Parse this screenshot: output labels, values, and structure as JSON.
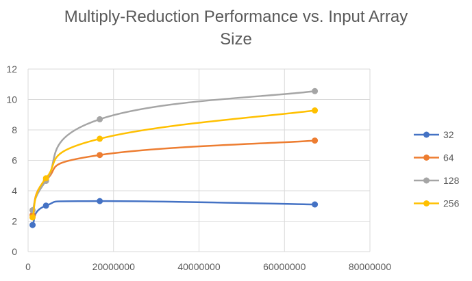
{
  "chart_data": {
    "type": "line",
    "title_lines": [
      "Multiply-Reduction Performance vs. Input Array",
      "Size"
    ],
    "xlabel": "",
    "ylabel": "",
    "xlim": [
      0,
      80000000
    ],
    "ylim": [
      0,
      12
    ],
    "x_ticks": [
      0,
      20000000,
      40000000,
      60000000,
      80000000
    ],
    "y_ticks": [
      0,
      2,
      4,
      6,
      8,
      10,
      12
    ],
    "grid": true,
    "smooth": true,
    "legend_position": "right",
    "x": [
      1048576,
      4194304,
      16777216,
      67108864
    ],
    "series": [
      {
        "name": "32",
        "color": "#4472C4",
        "values": [
          1.75,
          3.02,
          3.32,
          3.1
        ]
      },
      {
        "name": "64",
        "color": "#ED7D31",
        "values": [
          2.4,
          4.7,
          6.35,
          7.3
        ]
      },
      {
        "name": "128",
        "color": "#A5A5A5",
        "values": [
          2.72,
          4.65,
          8.7,
          10.55
        ]
      },
      {
        "name": "256",
        "color": "#FFC000",
        "values": [
          2.25,
          4.82,
          7.42,
          9.28
        ]
      }
    ]
  }
}
